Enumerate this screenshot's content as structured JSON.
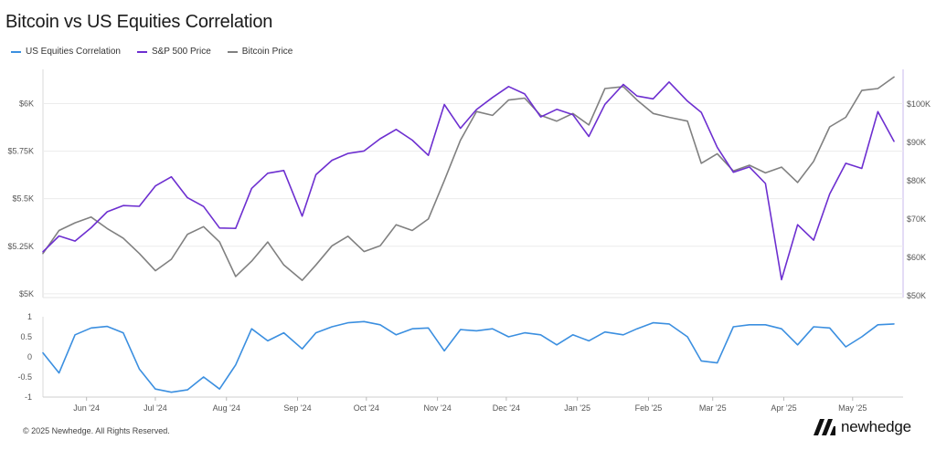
{
  "title": "Bitcoin vs US Equities Correlation",
  "legend": [
    {
      "name": "US Equities Correlation",
      "color": "#3b8fe0"
    },
    {
      "name": "S&P 500 Price",
      "color": "#6d2fd0"
    },
    {
      "name": "Bitcoin Price",
      "color": "#808080"
    }
  ],
  "footer": "© 2025 Newhedge. All Rights Reserved.",
  "brand": "newhedge",
  "chart_data": [
    {
      "type": "line",
      "x_ticks": [
        "Jun '24",
        "Jul '24",
        "Aug '24",
        "Sep '24",
        "Oct '24",
        "Nov '24",
        "Dec '24",
        "Jan '25",
        "Feb '25",
        "Mar '25",
        "Apr '25",
        "May '25"
      ],
      "y_left_ticks": [
        "$5K",
        "$5.25K",
        "$5.5K",
        "$5.75K",
        "$6K"
      ],
      "y_left_range": [
        4980,
        6180
      ],
      "y_right_ticks": [
        "$50K",
        "$60K",
        "$70K",
        "$80K",
        "$90K",
        "$100K"
      ],
      "y_right_range": [
        49500,
        109000
      ],
      "grid": true,
      "series": [
        {
          "name": "S&P 500 Price",
          "axis": "left",
          "color": "#6d2fd0",
          "x": [
            "2024-05-13",
            "2024-05-20",
            "2024-05-27",
            "2024-06-03",
            "2024-06-10",
            "2024-06-17",
            "2024-06-24",
            "2024-07-01",
            "2024-07-08",
            "2024-07-15",
            "2024-07-22",
            "2024-07-29",
            "2024-08-05",
            "2024-08-12",
            "2024-08-19",
            "2024-08-26",
            "2024-09-03",
            "2024-09-09",
            "2024-09-16",
            "2024-09-23",
            "2024-09-30",
            "2024-10-07",
            "2024-10-14",
            "2024-10-21",
            "2024-10-28",
            "2024-11-04",
            "2024-11-11",
            "2024-11-18",
            "2024-11-25",
            "2024-12-02",
            "2024-12-09",
            "2024-12-16",
            "2024-12-23",
            "2024-12-30",
            "2025-01-06",
            "2025-01-13",
            "2025-01-21",
            "2025-01-27",
            "2025-02-03",
            "2025-02-10",
            "2025-02-18",
            "2025-02-24",
            "2025-03-03",
            "2025-03-10",
            "2025-03-17",
            "2025-03-24",
            "2025-03-31",
            "2025-04-07",
            "2025-04-14",
            "2025-04-21",
            "2025-04-28",
            "2025-05-05",
            "2025-05-12",
            "2025-05-19"
          ],
          "y": [
            5221,
            5304,
            5277,
            5347,
            5431,
            5464,
            5460,
            5567,
            5615,
            5505,
            5459,
            5346,
            5344,
            5554,
            5634,
            5648,
            5408,
            5626,
            5702,
            5738,
            5751,
            5815,
            5864,
            5808,
            5728,
            5995,
            5870,
            5969,
            6032,
            6090,
            6051,
            5930,
            5970,
            5942,
            5827,
            5996,
            6101,
            6040,
            6025,
            6114,
            6013,
            5954,
            5770,
            5639,
            5667,
            5580,
            5074,
            5363,
            5282,
            5525,
            5686,
            5659,
            5958,
            5802
          ]
        },
        {
          "name": "Bitcoin Price",
          "axis": "right",
          "color": "#808080",
          "x": [
            "2024-05-13",
            "2024-05-20",
            "2024-05-27",
            "2024-06-03",
            "2024-06-10",
            "2024-06-17",
            "2024-06-24",
            "2024-07-01",
            "2024-07-08",
            "2024-07-15",
            "2024-07-22",
            "2024-07-29",
            "2024-08-05",
            "2024-08-12",
            "2024-08-19",
            "2024-08-26",
            "2024-09-03",
            "2024-09-09",
            "2024-09-16",
            "2024-09-23",
            "2024-09-30",
            "2024-10-07",
            "2024-10-14",
            "2024-10-21",
            "2024-10-28",
            "2024-11-04",
            "2024-11-11",
            "2024-11-18",
            "2024-11-25",
            "2024-12-02",
            "2024-12-09",
            "2024-12-16",
            "2024-12-23",
            "2024-12-30",
            "2025-01-06",
            "2025-01-13",
            "2025-01-21",
            "2025-01-27",
            "2025-02-03",
            "2025-02-10",
            "2025-02-18",
            "2025-02-24",
            "2025-03-03",
            "2025-03-10",
            "2025-03-17",
            "2025-03-24",
            "2025-03-31",
            "2025-04-07",
            "2025-04-14",
            "2025-04-21",
            "2025-04-28",
            "2025-05-05",
            "2025-05-12",
            "2025-05-19"
          ],
          "y": [
            61000,
            67000,
            69000,
            70500,
            67500,
            65000,
            61000,
            56500,
            59500,
            66000,
            68000,
            64000,
            55000,
            59000,
            64000,
            58000,
            54000,
            58000,
            63000,
            65500,
            61500,
            63000,
            68500,
            67000,
            70000,
            80000,
            90500,
            98000,
            97000,
            101000,
            101500,
            97000,
            95500,
            97500,
            94500,
            104000,
            104500,
            101000,
            97500,
            96500,
            95500,
            84500,
            87000,
            82500,
            84000,
            82000,
            83500,
            79500,
            85000,
            94000,
            96500,
            103500,
            104000,
            107000
          ]
        },
        {
          "name": "US Equities Correlation",
          "axis": "correlation",
          "color": "#3b8fe0",
          "x": [
            "2024-05-13",
            "2024-05-20",
            "2024-05-27",
            "2024-06-03",
            "2024-06-10",
            "2024-06-17",
            "2024-06-24",
            "2024-07-01",
            "2024-07-08",
            "2024-07-15",
            "2024-07-22",
            "2024-07-29",
            "2024-08-05",
            "2024-08-12",
            "2024-08-19",
            "2024-08-26",
            "2024-09-03",
            "2024-09-09",
            "2024-09-16",
            "2024-09-23",
            "2024-09-30",
            "2024-10-07",
            "2024-10-14",
            "2024-10-21",
            "2024-10-28",
            "2024-11-04",
            "2024-11-11",
            "2024-11-18",
            "2024-11-25",
            "2024-12-02",
            "2024-12-09",
            "2024-12-16",
            "2024-12-23",
            "2024-12-30",
            "2025-01-06",
            "2025-01-13",
            "2025-01-21",
            "2025-01-27",
            "2025-02-03",
            "2025-02-10",
            "2025-02-18",
            "2025-02-24",
            "2025-03-03",
            "2025-03-10",
            "2025-03-17",
            "2025-03-24",
            "2025-03-31",
            "2025-04-07",
            "2025-04-14",
            "2025-04-21",
            "2025-04-28",
            "2025-05-05",
            "2025-05-12",
            "2025-05-19"
          ],
          "y": [
            0.1,
            -0.4,
            0.55,
            0.72,
            0.76,
            0.6,
            -0.3,
            -0.8,
            -0.88,
            -0.82,
            -0.5,
            -0.8,
            -0.2,
            0.7,
            0.4,
            0.6,
            0.2,
            0.6,
            0.75,
            0.85,
            0.88,
            0.8,
            0.55,
            0.7,
            0.72,
            0.15,
            0.68,
            0.65,
            0.7,
            0.5,
            0.6,
            0.55,
            0.3,
            0.55,
            0.4,
            0.62,
            0.55,
            0.7,
            0.85,
            0.82,
            0.5,
            -0.1,
            -0.15,
            0.75,
            0.8,
            0.8,
            0.7,
            0.3,
            0.75,
            0.72,
            0.25,
            0.5,
            0.8,
            0.82
          ]
        }
      ],
      "corr_ticks": [
        "1",
        "0.5",
        "0",
        "-0.5",
        "-1"
      ],
      "corr_range": [
        -1,
        1
      ]
    }
  ]
}
